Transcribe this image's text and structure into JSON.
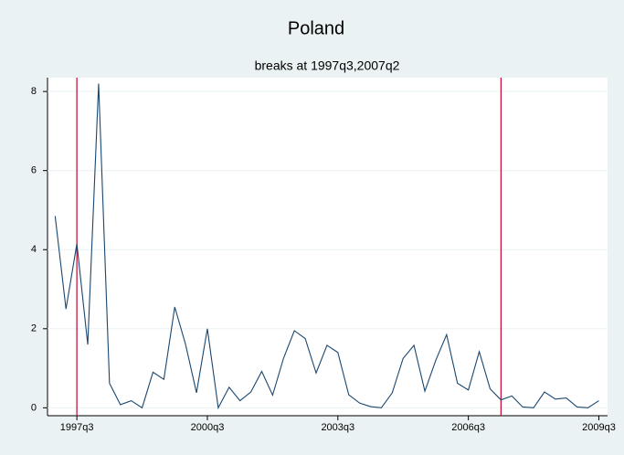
{
  "chart_data": {
    "type": "line",
    "title": "Poland",
    "subtitle": "breaks at 1997q3,2007q2",
    "x": [
      148,
      149,
      150,
      151,
      152,
      153,
      154,
      155,
      156,
      157,
      158,
      159,
      160,
      161,
      162,
      163,
      164,
      165,
      166,
      167,
      168,
      169,
      170,
      171,
      172,
      173,
      174,
      175,
      176,
      177,
      178,
      179,
      180,
      181,
      182,
      183,
      184,
      185,
      186,
      187,
      188,
      189,
      190,
      191,
      192,
      193,
      194,
      195,
      196,
      197,
      198
    ],
    "series": [
      {
        "color": "#1a476f",
        "values": [
          4.85,
          2.5,
          4.15,
          1.6,
          8.2,
          0.62,
          0.08,
          0.18,
          0.0,
          0.9,
          0.72,
          2.55,
          1.6,
          0.38,
          2.0,
          0.0,
          0.52,
          0.18,
          0.4,
          0.92,
          0.32,
          1.25,
          1.95,
          1.75,
          0.88,
          1.58,
          1.4,
          0.33,
          0.12,
          0.03,
          0.0,
          0.38,
          1.25,
          1.58,
          0.42,
          1.2,
          1.85,
          0.62,
          0.45,
          1.42,
          0.48,
          0.2,
          0.3,
          0.02,
          0.0,
          0.4,
          0.22,
          0.25,
          0.02,
          0.0,
          0.18
        ]
      }
    ],
    "breaks": [
      150,
      189
    ],
    "break_color": "#c10534",
    "xlim": [
      147.3,
      198.8
    ],
    "xticks": [
      {
        "value": 150,
        "label": "1997q3"
      },
      {
        "value": 162,
        "label": "2000q3"
      },
      {
        "value": 174,
        "label": "2003q3"
      },
      {
        "value": 186,
        "label": "2006q3"
      },
      {
        "value": 198,
        "label": "2009q3"
      }
    ],
    "ylim": [
      -0.2,
      8.35
    ],
    "yticks": [
      0,
      2,
      4,
      6,
      8
    ],
    "grid": true
  }
}
